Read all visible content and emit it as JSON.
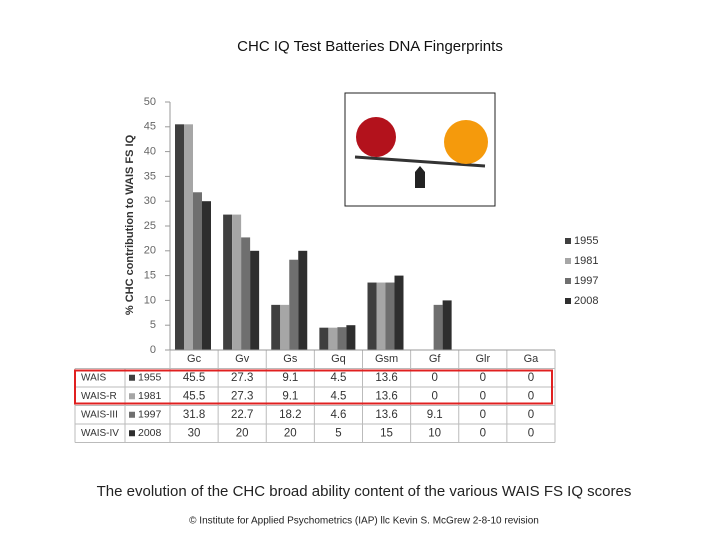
{
  "chart_data": {
    "type": "bar",
    "title": "CHC IQ Test Batteries  DNA Fingerprints",
    "y_label": "% CHC contribution to WAIS FS IQ",
    "caption": "The evolution of the CHC broad ability content of the various WAIS FS IQ scores",
    "credit": "© Institute for Applied Psychometrics (IAP) llc Kevin S. McGrew 2-8-10 revision",
    "categories": [
      "Gc",
      "Gv",
      "Gs",
      "Gq",
      "Gsm",
      "Gf",
      "Glr",
      "Ga"
    ],
    "series": [
      {
        "name": "1955",
        "label": "WAIS",
        "color": "#3f3f3f",
        "values": [
          45.5,
          27.3,
          9.1,
          4.5,
          13.6,
          0,
          0,
          0
        ]
      },
      {
        "name": "1981",
        "label": "WAIS-R",
        "color": "#a6a6a6",
        "values": [
          45.5,
          27.3,
          9.1,
          4.5,
          13.6,
          0,
          0,
          0
        ]
      },
      {
        "name": "1997",
        "label": "WAIS-III",
        "color": "#6f6f6f",
        "values": [
          31.8,
          22.7,
          18.2,
          4.6,
          13.6,
          9.1,
          0,
          0
        ]
      },
      {
        "name": "2008",
        "label": "WAIS-IV",
        "color": "#2e2e2e",
        "values": [
          30,
          20,
          20,
          5,
          15,
          10,
          0,
          0
        ]
      }
    ],
    "ylim": [
      0,
      50
    ],
    "yticks": [
      0,
      5,
      10,
      15,
      20,
      25,
      30,
      35,
      40,
      45,
      50
    ],
    "highlight_color": "#e02020"
  }
}
